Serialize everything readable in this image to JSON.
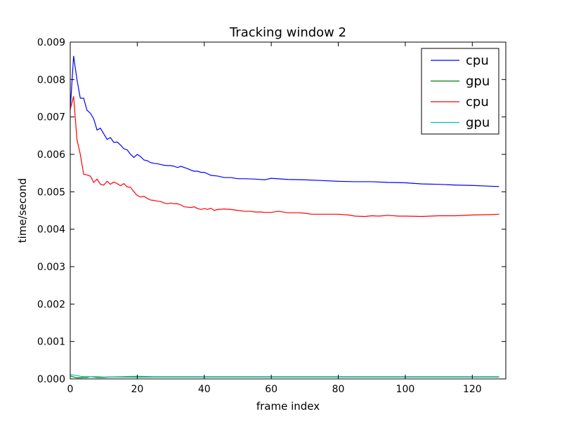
{
  "chart_data": {
    "type": "line",
    "title": "Tracking window 2",
    "xlabel": "frame index",
    "ylabel": "time/second",
    "xlim": [
      0,
      130
    ],
    "ylim": [
      0,
      0.009
    ],
    "xticks": [
      0,
      20,
      40,
      60,
      80,
      100,
      120
    ],
    "xtick_labels": [
      "0",
      "20",
      "40",
      "60",
      "80",
      "100",
      "120"
    ],
    "yticks": [
      0,
      0.001,
      0.002,
      0.003,
      0.004,
      0.005,
      0.006,
      0.007,
      0.008,
      0.009
    ],
    "ytick_labels": [
      "0.000",
      "0.001",
      "0.002",
      "0.003",
      "0.004",
      "0.005",
      "0.006",
      "0.007",
      "0.008",
      "0.009"
    ],
    "grid": false,
    "legend_position": "top-right",
    "series": [
      {
        "name": "cpu",
        "color": "#0000ff",
        "points": [
          [
            0,
            0.0072
          ],
          [
            1,
            0.00863
          ],
          [
            2,
            0.008
          ],
          [
            3,
            0.0075
          ],
          [
            4,
            0.0075
          ],
          [
            5,
            0.00718
          ],
          [
            6,
            0.0071
          ],
          [
            7,
            0.00695
          ],
          [
            8,
            0.00665
          ],
          [
            9,
            0.0067
          ],
          [
            10,
            0.00655
          ],
          [
            11,
            0.0064
          ],
          [
            12,
            0.00645
          ],
          [
            13,
            0.00632
          ],
          [
            14,
            0.00633
          ],
          [
            15,
            0.00625
          ],
          [
            16,
            0.00615
          ],
          [
            17,
            0.00612
          ],
          [
            18,
            0.006
          ],
          [
            19,
            0.00592
          ],
          [
            20,
            0.006
          ],
          [
            21,
            0.00594
          ],
          [
            22,
            0.00585
          ],
          [
            23,
            0.00583
          ],
          [
            24,
            0.00578
          ],
          [
            25,
            0.00576
          ],
          [
            26,
            0.00575
          ],
          [
            27,
            0.00573
          ],
          [
            28,
            0.00571
          ],
          [
            29,
            0.0057
          ],
          [
            30,
            0.0057
          ],
          [
            31,
            0.00568
          ],
          [
            32,
            0.00565
          ],
          [
            33,
            0.00568
          ],
          [
            34,
            0.00565
          ],
          [
            35,
            0.00562
          ],
          [
            36,
            0.00558
          ],
          [
            37,
            0.00555
          ],
          [
            38,
            0.00555
          ],
          [
            39,
            0.00552
          ],
          [
            40,
            0.00552
          ],
          [
            42,
            0.00544
          ],
          [
            44,
            0.00542
          ],
          [
            46,
            0.00538
          ],
          [
            48,
            0.00538
          ],
          [
            50,
            0.00535
          ],
          [
            52,
            0.00535
          ],
          [
            55,
            0.00534
          ],
          [
            58,
            0.00532
          ],
          [
            60,
            0.00536
          ],
          [
            65,
            0.00533
          ],
          [
            70,
            0.00532
          ],
          [
            75,
            0.0053
          ],
          [
            80,
            0.00528
          ],
          [
            85,
            0.00527
          ],
          [
            90,
            0.00527
          ],
          [
            95,
            0.00525
          ],
          [
            100,
            0.00524
          ],
          [
            105,
            0.00521
          ],
          [
            110,
            0.0052
          ],
          [
            115,
            0.00518
          ],
          [
            120,
            0.00517
          ],
          [
            125,
            0.00515
          ],
          [
            128,
            0.00514
          ]
        ]
      },
      {
        "name": "gpu",
        "color": "#008000",
        "points": [
          [
            0,
            8e-05
          ],
          [
            1,
            5e-05
          ],
          [
            2,
            3e-05
          ],
          [
            3,
            3e-05
          ],
          [
            4,
            4e-05
          ],
          [
            5,
            4e-05
          ],
          [
            6,
            6e-05
          ],
          [
            7,
            5e-05
          ],
          [
            8,
            4e-05
          ],
          [
            10,
            4e-05
          ],
          [
            12,
            5e-05
          ],
          [
            15,
            5e-05
          ],
          [
            20,
            5e-05
          ],
          [
            30,
            5e-05
          ],
          [
            40,
            5e-05
          ],
          [
            60,
            5e-05
          ],
          [
            80,
            5e-05
          ],
          [
            100,
            5e-05
          ],
          [
            120,
            5e-05
          ],
          [
            128,
            5e-05
          ]
        ]
      },
      {
        "name": "cpu",
        "color": "#ff0000",
        "points": [
          [
            0,
            0.0072
          ],
          [
            1,
            0.00755
          ],
          [
            2,
            0.0064
          ],
          [
            3,
            0.006
          ],
          [
            4,
            0.00547
          ],
          [
            5,
            0.00545
          ],
          [
            6,
            0.00542
          ],
          [
            7,
            0.00525
          ],
          [
            8,
            0.00534
          ],
          [
            9,
            0.0052
          ],
          [
            10,
            0.00518
          ],
          [
            11,
            0.00528
          ],
          [
            12,
            0.0052
          ],
          [
            13,
            0.00526
          ],
          [
            14,
            0.00522
          ],
          [
            15,
            0.00516
          ],
          [
            16,
            0.00522
          ],
          [
            17,
            0.00513
          ],
          [
            18,
            0.00512
          ],
          [
            19,
            0.005
          ],
          [
            20,
            0.0049
          ],
          [
            21,
            0.00486
          ],
          [
            22,
            0.00488
          ],
          [
            23,
            0.00482
          ],
          [
            24,
            0.00478
          ],
          [
            25,
            0.00477
          ],
          [
            26,
            0.00475
          ],
          [
            27,
            0.00474
          ],
          [
            28,
            0.0047
          ],
          [
            29,
            0.00468
          ],
          [
            30,
            0.0047
          ],
          [
            31,
            0.00468
          ],
          [
            32,
            0.00468
          ],
          [
            33,
            0.00465
          ],
          [
            34,
            0.0046
          ],
          [
            35,
            0.00459
          ],
          [
            36,
            0.00458
          ],
          [
            37,
            0.0046
          ],
          [
            38,
            0.00455
          ],
          [
            39,
            0.00453
          ],
          [
            40,
            0.00455
          ],
          [
            41,
            0.00453
          ],
          [
            42,
            0.00456
          ],
          [
            43,
            0.0045
          ],
          [
            44,
            0.00453
          ],
          [
            46,
            0.00454
          ],
          [
            48,
            0.00453
          ],
          [
            50,
            0.0045
          ],
          [
            52,
            0.00448
          ],
          [
            54,
            0.00448
          ],
          [
            55,
            0.00446
          ],
          [
            57,
            0.00446
          ],
          [
            58,
            0.00445
          ],
          [
            60,
            0.00445
          ],
          [
            62,
            0.00448
          ],
          [
            65,
            0.00444
          ],
          [
            68,
            0.00444
          ],
          [
            70,
            0.00443
          ],
          [
            72,
            0.0044
          ],
          [
            75,
            0.0044
          ],
          [
            80,
            0.0044
          ],
          [
            83,
            0.00438
          ],
          [
            85,
            0.00435
          ],
          [
            88,
            0.00434
          ],
          [
            90,
            0.00436
          ],
          [
            92,
            0.00435
          ],
          [
            95,
            0.00437
          ],
          [
            98,
            0.00435
          ],
          [
            100,
            0.00435
          ],
          [
            105,
            0.00434
          ],
          [
            110,
            0.00436
          ],
          [
            115,
            0.00436
          ],
          [
            120,
            0.00438
          ],
          [
            125,
            0.00439
          ],
          [
            128,
            0.0044
          ]
        ]
      },
      {
        "name": "gpu",
        "color": "#00bfbf",
        "points": [
          [
            0,
            0.00012
          ],
          [
            1,
            0.0001
          ],
          [
            2,
            9e-05
          ],
          [
            3,
            7e-05
          ],
          [
            4,
            6e-05
          ],
          [
            5,
            6e-05
          ],
          [
            6,
            6e-05
          ],
          [
            8,
            6e-05
          ],
          [
            10,
            5e-05
          ],
          [
            15,
            6e-05
          ],
          [
            20,
            7e-05
          ],
          [
            25,
            6e-05
          ],
          [
            30,
            6e-05
          ],
          [
            40,
            6e-05
          ],
          [
            50,
            6e-05
          ],
          [
            60,
            6e-05
          ],
          [
            80,
            6e-05
          ],
          [
            100,
            6e-05
          ],
          [
            120,
            6e-05
          ],
          [
            128,
            6e-05
          ]
        ]
      }
    ]
  }
}
